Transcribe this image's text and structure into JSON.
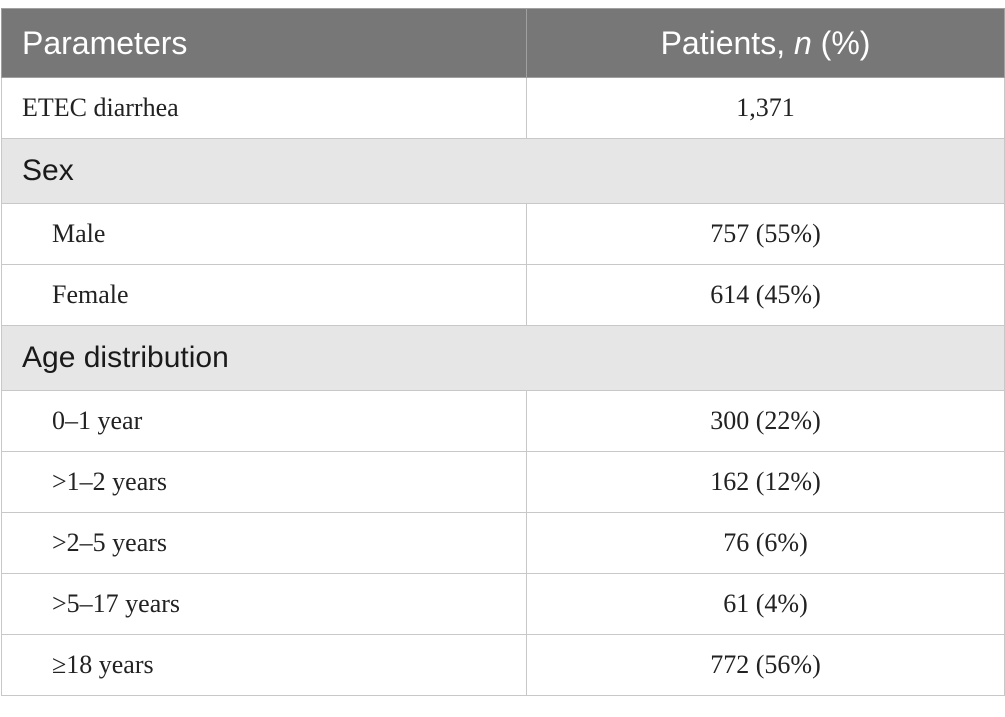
{
  "header": {
    "col1": "Parameters",
    "col2_prefix": "Patients, ",
    "col2_italic": "n",
    "col2_suffix": " (%)"
  },
  "rows": {
    "etec": {
      "label": "ETEC diarrhea",
      "value": "1,371"
    },
    "sex_section": "Sex",
    "male": {
      "label": "Male",
      "value": "757 (55%)"
    },
    "female": {
      "label": "Female",
      "value": "614 (45%)"
    },
    "age_section": "Age distribution",
    "age_0_1": {
      "label": "0–1 year",
      "value": "300 (22%)"
    },
    "age_1_2": {
      "label": ">1–2 years",
      "value": "162 (12%)"
    },
    "age_2_5": {
      "label": ">2–5 years",
      "value": "76 (6%)"
    },
    "age_5_17": {
      "label": ">5–17 years",
      "value": "61 (4%)"
    },
    "age_18": {
      "label": "≥18 years",
      "value": "772 (56%)"
    }
  }
}
